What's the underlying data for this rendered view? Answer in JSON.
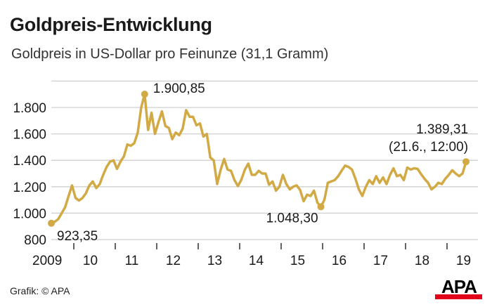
{
  "title": "Goldpreis-Entwicklung",
  "subtitle": "Goldpreis in US-Dollar pro Feinunze (31,1 Gramm)",
  "source": "Grafik: © APA",
  "logo": "APA",
  "colors": {
    "line": "#d2aa45",
    "grid": "#cfcfcf",
    "logo_red": "#e2001a"
  },
  "chart_data": {
    "type": "line",
    "title": "Goldpreis-Entwicklung",
    "subtitle": "Goldpreis in US-Dollar pro Feinunze (31,1 Gramm)",
    "xlabel": "",
    "ylabel": "",
    "ylim": [
      800,
      2000
    ],
    "yticks": [
      800,
      1000,
      1200,
      1400,
      1600,
      1800
    ],
    "ytick_labels": [
      "800",
      "1.000",
      "1.200",
      "1.400",
      "1.600",
      "1.800"
    ],
    "xtick_labels": [
      "2009",
      "10",
      "11",
      "12",
      "13",
      "14",
      "15",
      "16",
      "17",
      "18",
      "19"
    ],
    "grid": true,
    "series": [
      {
        "points": [
          [
            "2009-06",
            923.35
          ],
          [
            "2009-07",
            935
          ],
          [
            "2009-08",
            955
          ],
          [
            "2009-09",
            1000
          ],
          [
            "2009-10",
            1045
          ],
          [
            "2009-11",
            1130
          ],
          [
            "2009-12",
            1210
          ],
          [
            "2010-01",
            1115
          ],
          [
            "2010-02",
            1095
          ],
          [
            "2010-03",
            1115
          ],
          [
            "2010-04",
            1150
          ],
          [
            "2010-05",
            1210
          ],
          [
            "2010-06",
            1240
          ],
          [
            "2010-07",
            1190
          ],
          [
            "2010-08",
            1220
          ],
          [
            "2010-09",
            1290
          ],
          [
            "2010-10",
            1350
          ],
          [
            "2010-11",
            1390
          ],
          [
            "2010-12",
            1400
          ],
          [
            "2011-01",
            1335
          ],
          [
            "2011-02",
            1390
          ],
          [
            "2011-03",
            1430
          ],
          [
            "2011-04",
            1520
          ],
          [
            "2011-05",
            1510
          ],
          [
            "2011-06",
            1530
          ],
          [
            "2011-07",
            1610
          ],
          [
            "2011-08",
            1800
          ],
          [
            "2011-09",
            1900.85
          ],
          [
            "2011-10",
            1630
          ],
          [
            "2011-11",
            1760
          ],
          [
            "2011-12",
            1600
          ],
          [
            "2012-01",
            1690
          ],
          [
            "2012-02",
            1770
          ],
          [
            "2012-03",
            1660
          ],
          [
            "2012-04",
            1645
          ],
          [
            "2012-05",
            1560
          ],
          [
            "2012-06",
            1610
          ],
          [
            "2012-07",
            1590
          ],
          [
            "2012-08",
            1640
          ],
          [
            "2012-09",
            1780
          ],
          [
            "2012-10",
            1730
          ],
          [
            "2012-11",
            1730
          ],
          [
            "2012-12",
            1665
          ],
          [
            "2013-01",
            1680
          ],
          [
            "2013-02",
            1580
          ],
          [
            "2013-03",
            1600
          ],
          [
            "2013-04",
            1420
          ],
          [
            "2013-05",
            1400
          ],
          [
            "2013-06",
            1220
          ],
          [
            "2013-07",
            1330
          ],
          [
            "2013-08",
            1410
          ],
          [
            "2013-09",
            1330
          ],
          [
            "2013-10",
            1320
          ],
          [
            "2013-11",
            1250
          ],
          [
            "2013-12",
            1205
          ],
          [
            "2014-01",
            1255
          ],
          [
            "2014-02",
            1330
          ],
          [
            "2014-03",
            1375
          ],
          [
            "2014-04",
            1290
          ],
          [
            "2014-05",
            1290
          ],
          [
            "2014-06",
            1320
          ],
          [
            "2014-07",
            1300
          ],
          [
            "2014-08",
            1300
          ],
          [
            "2014-09",
            1215
          ],
          [
            "2014-10",
            1240
          ],
          [
            "2014-11",
            1170
          ],
          [
            "2014-12",
            1200
          ],
          [
            "2015-01",
            1290
          ],
          [
            "2015-02",
            1220
          ],
          [
            "2015-03",
            1180
          ],
          [
            "2015-04",
            1200
          ],
          [
            "2015-05",
            1210
          ],
          [
            "2015-06",
            1175
          ],
          [
            "2015-07",
            1090
          ],
          [
            "2015-08",
            1140
          ],
          [
            "2015-09",
            1130
          ],
          [
            "2015-10",
            1170
          ],
          [
            "2015-11",
            1080
          ],
          [
            "2015-12",
            1048.3
          ],
          [
            "2016-01",
            1100
          ],
          [
            "2016-02",
            1230
          ],
          [
            "2016-03",
            1240
          ],
          [
            "2016-04",
            1250
          ],
          [
            "2016-05",
            1280
          ],
          [
            "2016-06",
            1320
          ],
          [
            "2016-07",
            1360
          ],
          [
            "2016-08",
            1350
          ],
          [
            "2016-09",
            1330
          ],
          [
            "2016-10",
            1260
          ],
          [
            "2016-11",
            1180
          ],
          [
            "2016-12",
            1130
          ],
          [
            "2017-01",
            1200
          ],
          [
            "2017-02",
            1250
          ],
          [
            "2017-03",
            1220
          ],
          [
            "2017-04",
            1280
          ],
          [
            "2017-05",
            1230
          ],
          [
            "2017-06",
            1270
          ],
          [
            "2017-07",
            1220
          ],
          [
            "2017-08",
            1290
          ],
          [
            "2017-09",
            1340
          ],
          [
            "2017-10",
            1280
          ],
          [
            "2017-11",
            1290
          ],
          [
            "2017-12",
            1250
          ],
          [
            "2018-01",
            1345
          ],
          [
            "2018-02",
            1330
          ],
          [
            "2018-03",
            1340
          ],
          [
            "2018-04",
            1335
          ],
          [
            "2018-05",
            1295
          ],
          [
            "2018-06",
            1260
          ],
          [
            "2018-07",
            1230
          ],
          [
            "2018-08",
            1180
          ],
          [
            "2018-09",
            1200
          ],
          [
            "2018-10",
            1230
          ],
          [
            "2018-11",
            1220
          ],
          [
            "2018-12",
            1260
          ],
          [
            "2019-01",
            1290
          ],
          [
            "2019-02",
            1325
          ],
          [
            "2019-03",
            1300
          ],
          [
            "2019-04",
            1280
          ],
          [
            "2019-05",
            1300
          ],
          [
            "2019-06",
            1389.31
          ]
        ]
      }
    ],
    "annotations": [
      {
        "x": "2009-06",
        "y": 923.35,
        "label": "923,35"
      },
      {
        "x": "2011-09",
        "y": 1900.85,
        "label": "1.900,85"
      },
      {
        "x": "2015-12",
        "y": 1048.3,
        "label": "1.048,30"
      },
      {
        "x": "2019-06",
        "y": 1389.31,
        "label": "1.389,31",
        "note": "(21.6., 12:00)"
      }
    ]
  }
}
